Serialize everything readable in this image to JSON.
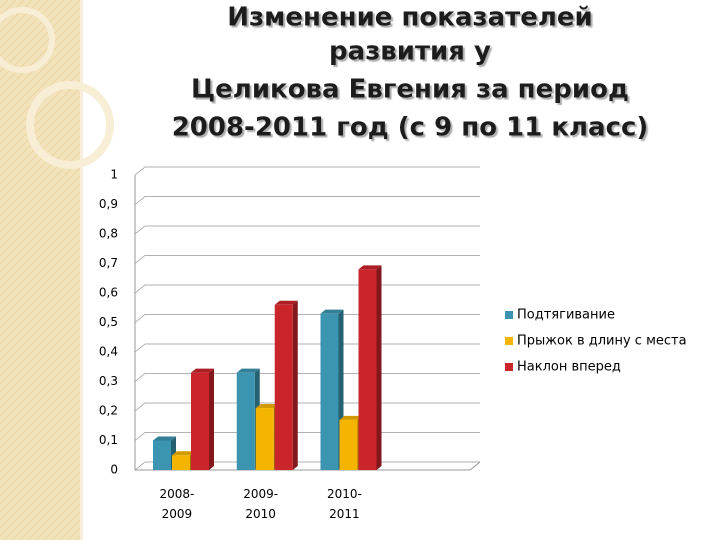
{
  "chart_data": {
    "type": "bar3d",
    "title_lines": [
      "Изменение  показателей",
      "развития у",
      "Целикова Евгения за период",
      "2008-2011 год (с 9 по 11 класс)"
    ],
    "categories": [
      "2008-2009",
      "2009-2010",
      "2010-2011",
      null
    ],
    "series": [
      {
        "name": "Подтягивание",
        "color": "#3b95b0",
        "values": [
          0.1,
          0.33,
          0.53,
          null
        ]
      },
      {
        "name": "Прыжок в длину с места",
        "color": "#f5b400",
        "values": [
          0.05,
          0.21,
          0.17,
          null
        ]
      },
      {
        "name": "Наклон вперед",
        "color": "#c9252b",
        "values": [
          0.33,
          0.56,
          0.68,
          null
        ]
      }
    ],
    "ylim": [
      0,
      1
    ],
    "yticks": [
      0,
      {
        "value": 0.1,
        "label": "0,1"
      },
      {
        "value": 0.2,
        "label": "0,2"
      },
      {
        "value": 0.3,
        "label": "0,3"
      },
      {
        "value": 0.4,
        "label": "0,4"
      },
      {
        "value": 0.5,
        "label": "0,5"
      },
      {
        "value": 0.6,
        "label": "0,6"
      },
      {
        "value": 0.7,
        "label": "0,7"
      },
      {
        "value": 0.8,
        "label": "0,8"
      },
      {
        "value": 0.9,
        "label": "0,9"
      },
      1
    ],
    "grid": true,
    "legend": "right"
  }
}
